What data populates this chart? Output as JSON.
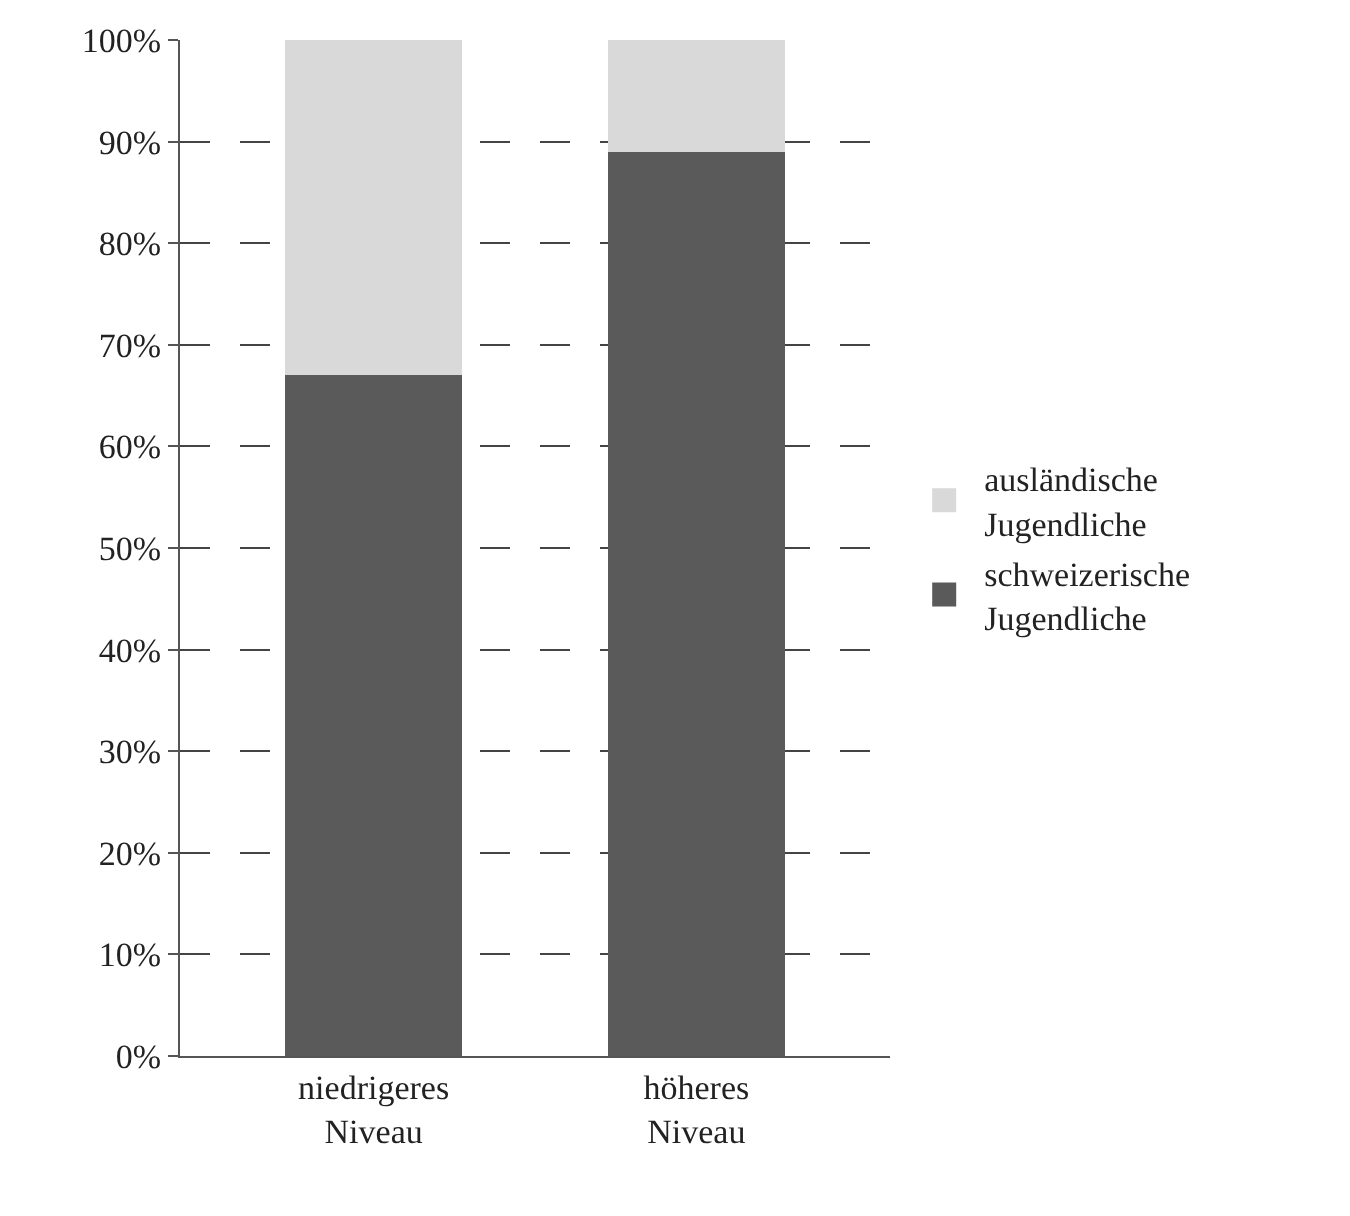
{
  "chart_data": {
    "type": "bar",
    "stacked": true,
    "categories": [
      "niedrigeres Niveau",
      "höheres Niveau"
    ],
    "series": [
      {
        "name": "schweizerische Jugendliche",
        "color": "#5a5a5a",
        "values": [
          67,
          89
        ]
      },
      {
        "name": "ausländische Jugendliche",
        "color": "#d9d9d9",
        "values": [
          33,
          11
        ]
      }
    ],
    "ylim": [
      0,
      100
    ],
    "yticks": [
      {
        "value": 0,
        "label": "0%"
      },
      {
        "value": 10,
        "label": "10%"
      },
      {
        "value": 20,
        "label": "20%"
      },
      {
        "value": 30,
        "label": "30%"
      },
      {
        "value": 40,
        "label": "40%"
      },
      {
        "value": 50,
        "label": "50%"
      },
      {
        "value": 60,
        "label": "60%"
      },
      {
        "value": 70,
        "label": "70%"
      },
      {
        "value": 80,
        "label": "80%"
      },
      {
        "value": 90,
        "label": "90%"
      },
      {
        "value": 100,
        "label": "100%"
      }
    ],
    "grid": "y",
    "line_style": "dashed",
    "legend": "right"
  }
}
